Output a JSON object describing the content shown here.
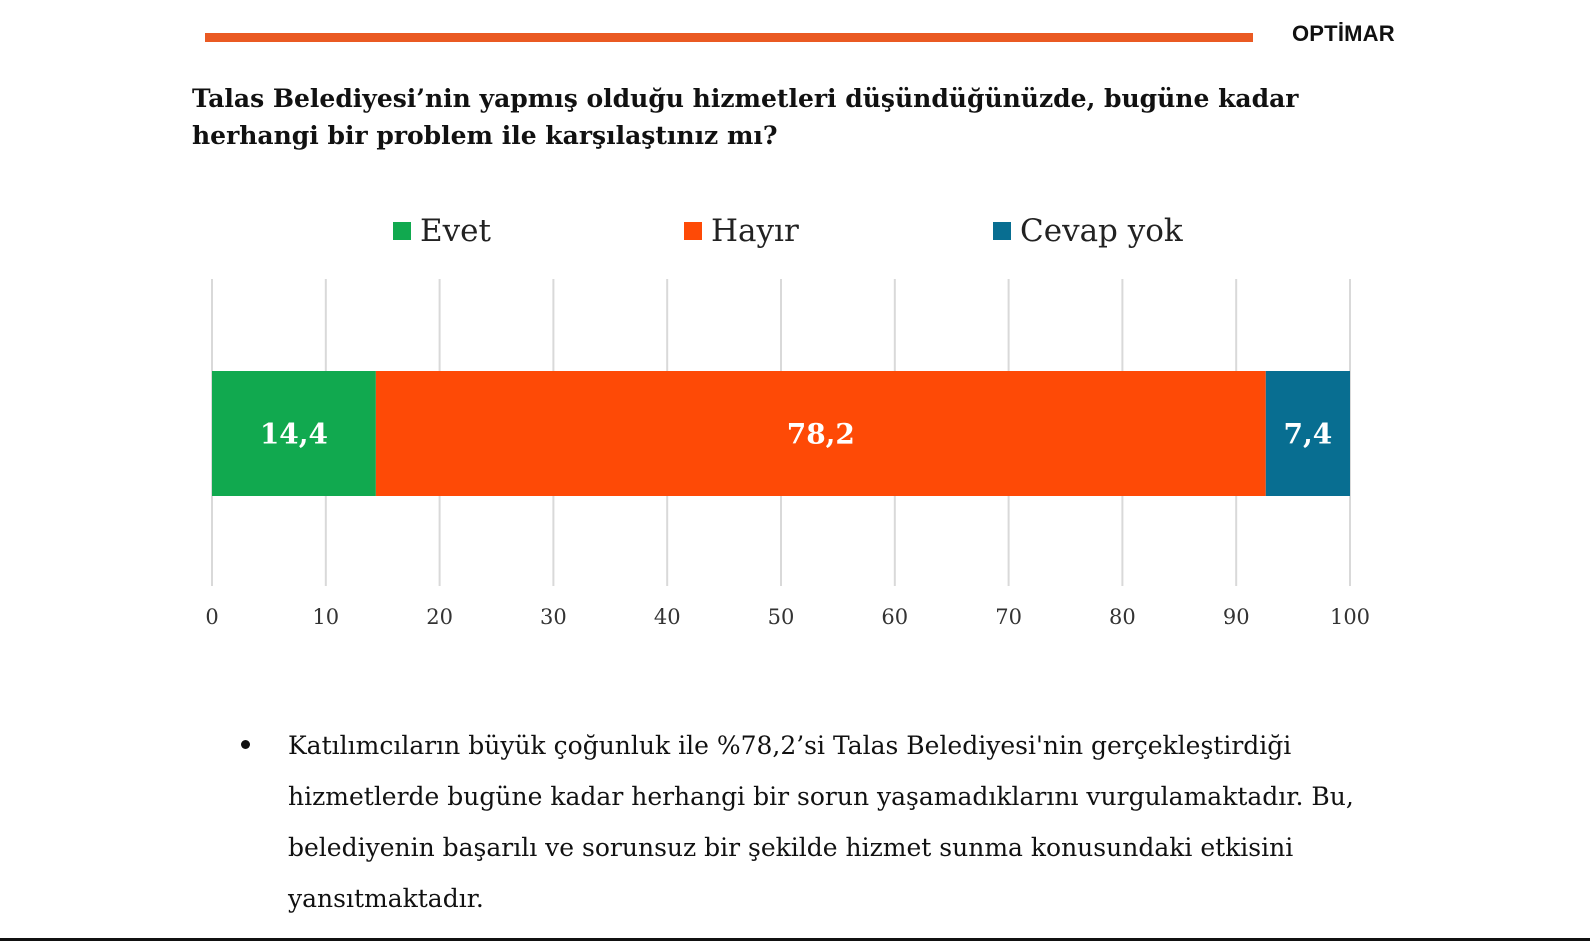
{
  "header": {
    "brand": "OPTİMAR",
    "accent_color": "#ea5a23"
  },
  "question": "Talas Belediyesi’nin yapmış olduğu hizmetleri düşündüğünüzde, bugüne kadar herhangi bir problem ile karşılaştınız mı?",
  "chart_data": {
    "type": "bar",
    "orientation": "horizontal",
    "stacked": true,
    "title": "",
    "xlabel": "",
    "ylabel": "",
    "xlim": [
      0,
      100
    ],
    "xticks": [
      "0",
      "10",
      "20",
      "30",
      "40",
      "50",
      "60",
      "70",
      "80",
      "90",
      "100"
    ],
    "grid": true,
    "legend_position": "top",
    "series": [
      {
        "name": "Evet",
        "value": 14.4,
        "label": "14,4",
        "color": "#11a94f"
      },
      {
        "name": "Hayır",
        "value": 78.2,
        "label": "78,2",
        "color": "#fe4a06"
      },
      {
        "name": "Cevap yok",
        "value": 7.4,
        "label": "7,4",
        "color": "#086e91"
      }
    ]
  },
  "bullet": {
    "text": "Katılımcıların büyük çoğunluk ile %78,2’si Talas Belediyesi'nin gerçekleştirdiği hizmetlerde bugüne kadar herhangi bir sorun yaşamadıklarını vurgulamaktadır. Bu, belediyenin başarılı ve sorunsuz bir şekilde hizmet sunma konusundaki etkisini yansıtmaktadır."
  }
}
